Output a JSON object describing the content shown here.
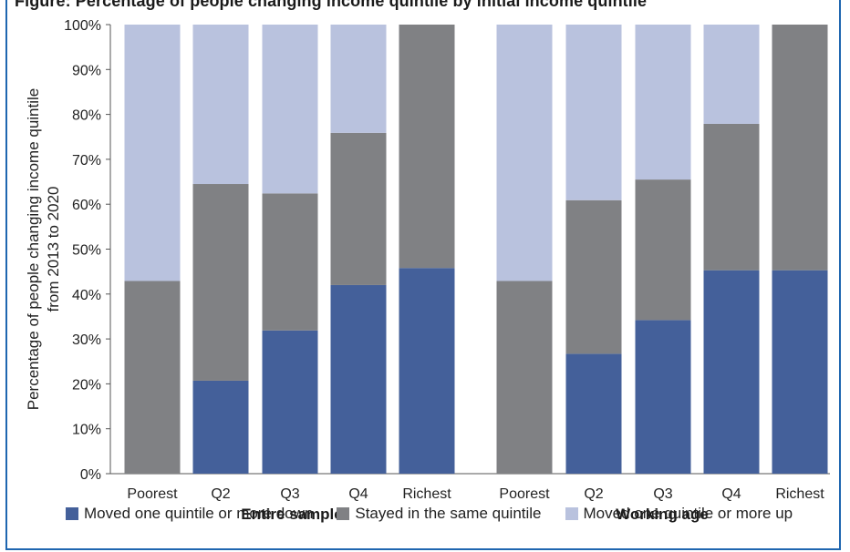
{
  "header": {
    "title_fragment": "Figure: Percentage of people changing income quintile by initial income quintile"
  },
  "chart_data": {
    "type": "bar",
    "stacked": true,
    "ylabel": "Percentage of people changing income quintile from 2013 to 2020",
    "ylabel_lines": [
      "Percentage of people changing income quintile",
      "from 2013 to 2020"
    ],
    "ylim": [
      0,
      100
    ],
    "yticks": [
      "0%",
      "10%",
      "20%",
      "30%",
      "40%",
      "50%",
      "60%",
      "70%",
      "80%",
      "90%",
      "100%"
    ],
    "groups": [
      {
        "label": "Entire sample",
        "categories": [
          "Poorest",
          "Q2",
          "Q3",
          "Q4",
          "Richest"
        ]
      },
      {
        "label": "Working age",
        "categories": [
          "Poorest",
          "Q2",
          "Q3",
          "Q4",
          "Richest"
        ]
      }
    ],
    "series": [
      {
        "name": "Moved one quintile or more down",
        "color": "#44609a",
        "values": [
          0,
          20.7,
          31.9,
          42,
          45.8,
          0,
          26.7,
          34.2,
          45.3,
          45.3
        ]
      },
      {
        "name": "Stayed in the same quintile",
        "color": "#808184",
        "values": [
          42.9,
          43.8,
          30.5,
          33.9,
          54.2,
          42.9,
          34.2,
          31.3,
          32.6,
          54.7
        ]
      },
      {
        "name": "Moved one quintile or more up",
        "color": "#b9c2de",
        "values": [
          57.1,
          35.5,
          37.6,
          24.1,
          0,
          57.1,
          39.1,
          34.5,
          22.1,
          0
        ]
      }
    ],
    "grid": false,
    "legend_position": "bottom"
  }
}
